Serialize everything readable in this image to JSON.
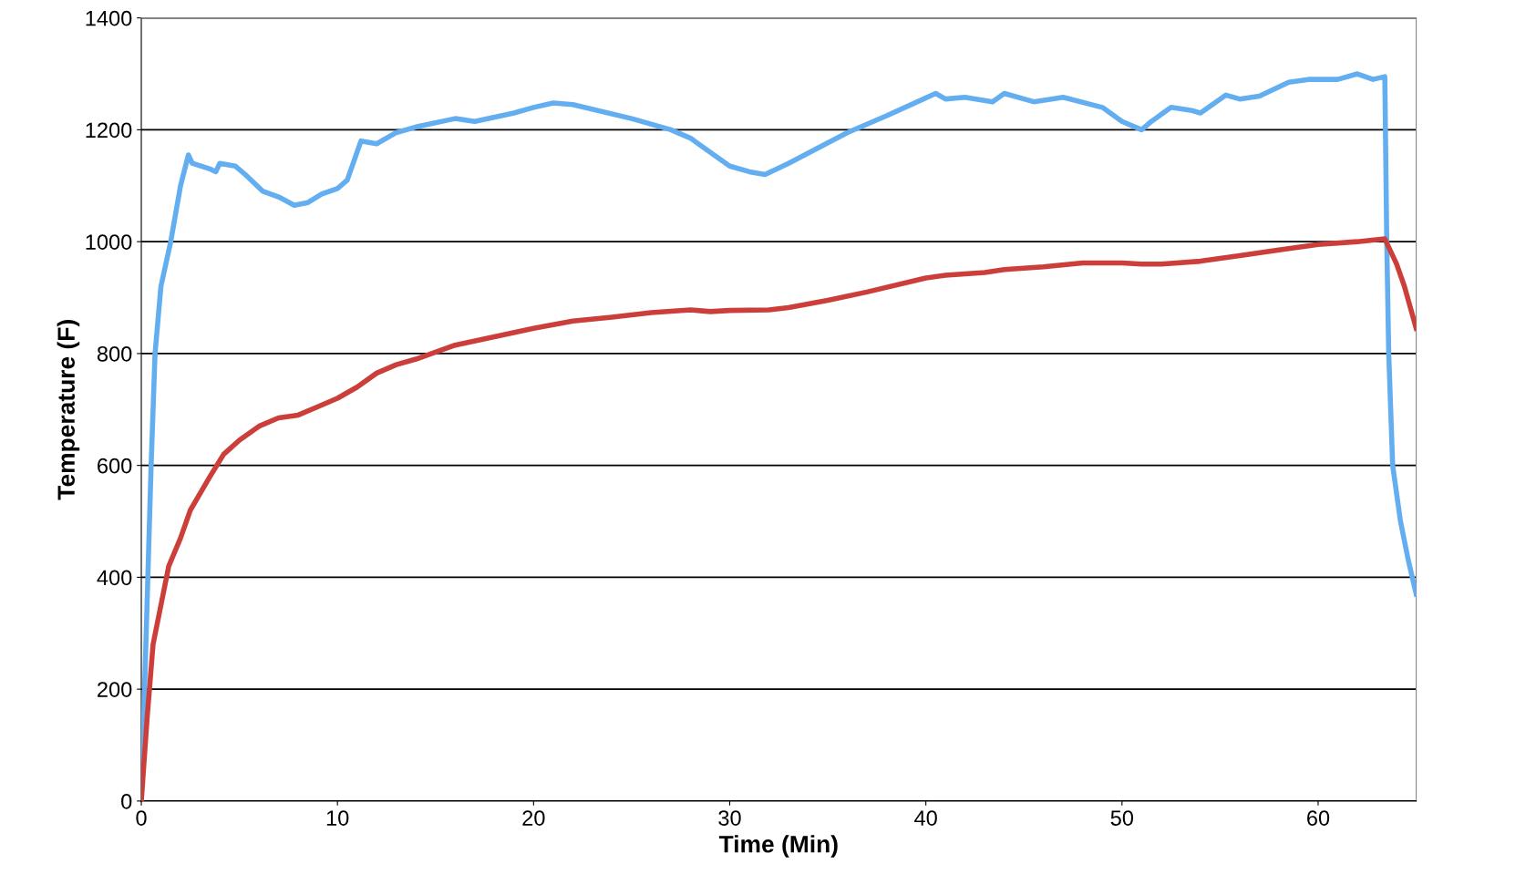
{
  "chart_data": {
    "type": "line",
    "xlabel": "Time (Min)",
    "ylabel": "Temperature (F)",
    "xlim": [
      0,
      65
    ],
    "xticks": [
      0,
      10,
      20,
      30,
      40,
      50,
      60
    ],
    "ylim": [
      0,
      1400
    ],
    "yticks": [
      0,
      200,
      400,
      600,
      800,
      1000,
      1200,
      1400
    ],
    "grid": "y",
    "legend": false,
    "marker": "none",
    "line_style": "solid",
    "series": [
      {
        "color": "#63aef0",
        "x": [
          0,
          0.5,
          0.7,
          1.0,
          1.5,
          2.0,
          2.4,
          2.6,
          3.5,
          3.8,
          4.0,
          4.8,
          5.3,
          6.2,
          7,
          7.8,
          8.5,
          9.2,
          10,
          10.5,
          11.2,
          12,
          13,
          14,
          16,
          17,
          19,
          20,
          21,
          22,
          25,
          27,
          28,
          29,
          30,
          31,
          31.8,
          33,
          36,
          38,
          40.5,
          41,
          42,
          43.4,
          44,
          45.5,
          47,
          49,
          50,
          51,
          51.5,
          52.5,
          53.5,
          54,
          55.3,
          56,
          57,
          58.5,
          59.5,
          61,
          62,
          62.8,
          63.4,
          63.5,
          63.6,
          63.8,
          64.2,
          64.6,
          65
        ],
        "values": [
          0,
          600,
          800,
          920,
          1000,
          1100,
          1155,
          1140,
          1130,
          1125,
          1140,
          1135,
          1120,
          1090,
          1080,
          1065,
          1070,
          1085,
          1095,
          1110,
          1180,
          1175,
          1195,
          1205,
          1220,
          1215,
          1230,
          1240,
          1248,
          1245,
          1220,
          1200,
          1185,
          1160,
          1135,
          1125,
          1120,
          1140,
          1195,
          1225,
          1265,
          1255,
          1258,
          1250,
          1265,
          1250,
          1258,
          1240,
          1215,
          1200,
          1215,
          1240,
          1235,
          1230,
          1262,
          1255,
          1260,
          1285,
          1290,
          1290,
          1300,
          1290,
          1295,
          1000,
          800,
          600,
          500,
          430,
          370
        ]
      },
      {
        "color": "#cc3e3a",
        "x": [
          0,
          0.3,
          0.6,
          1.0,
          1.4,
          2,
          2.5,
          3.5,
          4.2,
          5,
          6,
          7,
          8,
          9,
          10,
          11,
          12,
          13,
          14,
          16,
          18,
          20,
          22,
          24,
          26,
          28,
          29,
          30,
          32,
          33,
          35,
          37,
          40,
          41,
          43,
          44,
          46,
          48,
          50,
          51,
          52,
          54,
          56,
          58,
          60,
          62,
          63.4,
          64,
          64.4,
          65
        ],
        "values": [
          0,
          150,
          280,
          350,
          420,
          470,
          520,
          580,
          620,
          645,
          670,
          685,
          690,
          705,
          720,
          740,
          765,
          780,
          790,
          815,
          830,
          845,
          858,
          865,
          873,
          878,
          875,
          877,
          878,
          882,
          895,
          910,
          935,
          940,
          945,
          950,
          955,
          962,
          962,
          960,
          960,
          965,
          975,
          985,
          995,
          1000,
          1005,
          960,
          920,
          845
        ]
      }
    ]
  }
}
